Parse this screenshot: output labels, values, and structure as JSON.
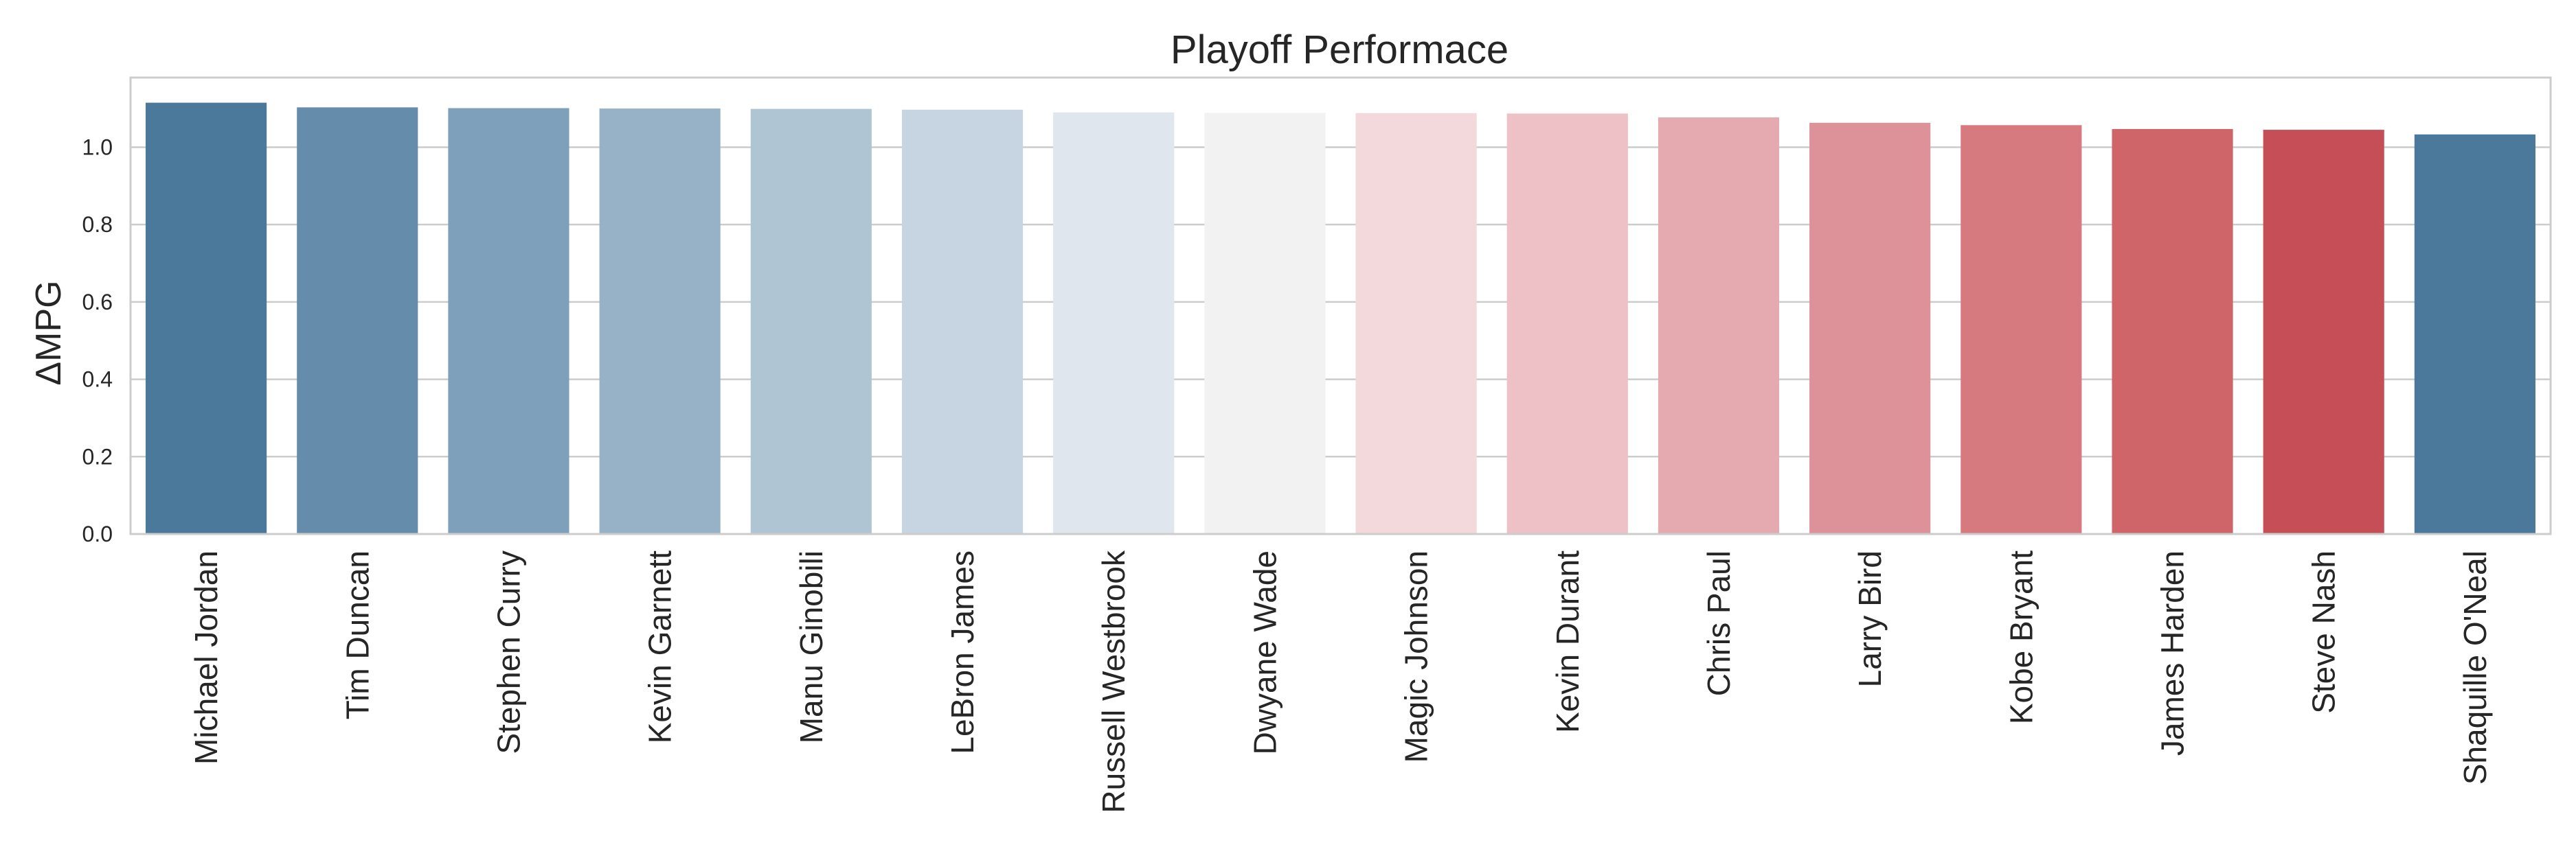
{
  "chart_data": {
    "type": "bar",
    "title": "Playoff Performace",
    "xlabel": "",
    "ylabel": "ΔMPG",
    "ylim": [
      0,
      1.18
    ],
    "yticks": [
      "0.0",
      "0.2",
      "0.4",
      "0.6",
      "0.8",
      "1.0"
    ],
    "grid": true,
    "categories": [
      "Michael Jordan",
      "Tim Duncan",
      "Stephen Curry",
      "Kevin Garnett",
      "Manu Ginobili",
      "LeBron James",
      "Russell Westbrook",
      "Dwyane Wade",
      "Magic Johnson",
      "Kevin Durant",
      "Chris Paul",
      "Larry Bird",
      "Kobe Bryant",
      "James Harden",
      "Steve Nash",
      "Shaquille O'Neal"
    ],
    "values": [
      1.115,
      1.103,
      1.101,
      1.1,
      1.099,
      1.097,
      1.09,
      1.089,
      1.088,
      1.087,
      1.077,
      1.063,
      1.057,
      1.047,
      1.045,
      1.033
    ],
    "colors": [
      "#4b799b",
      "#658caa",
      "#7fa0ba",
      "#97b2c6",
      "#afc5d4",
      "#c6d5e1",
      "#dfe6ee",
      "#f2f2f2",
      "#f3d8dc",
      "#edc1c6",
      "#e5aaaf",
      "#dd9198",
      "#d67a7f",
      "#cf6569",
      "#c54e57",
      "#4b799b"
    ]
  }
}
